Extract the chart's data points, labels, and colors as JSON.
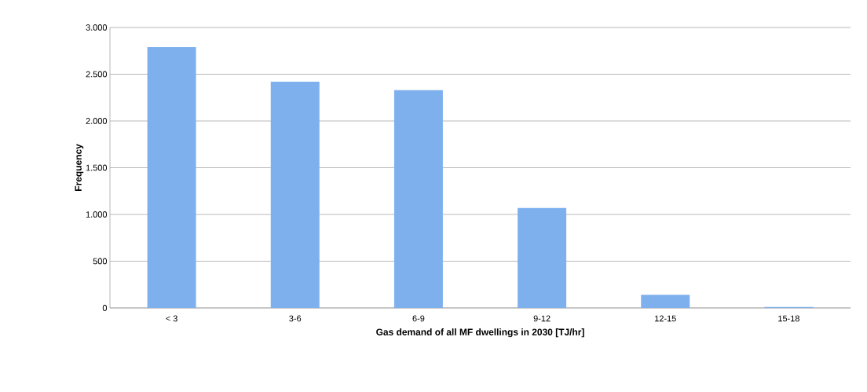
{
  "chart_data": {
    "type": "bar",
    "xlabel": "Gas demand of all MF dwellings in 2030 [TJ/hr]",
    "ylabel": "Frequency",
    "categories": [
      "< 3",
      "3-6",
      "6-9",
      "9-12",
      "12-15",
      "15-18"
    ],
    "values": [
      2790,
      2420,
      2330,
      1070,
      140,
      10
    ],
    "color": "#7fb0ee",
    "ylim": [
      0,
      3000
    ],
    "yticks": [
      {
        "value": 0,
        "label": "0"
      },
      {
        "value": 500,
        "label": "500"
      },
      {
        "value": 1000,
        "label": "1.000"
      },
      {
        "value": 1500,
        "label": "1.500"
      },
      {
        "value": 2000,
        "label": "2.000"
      },
      {
        "value": 2500,
        "label": "2.500"
      },
      {
        "value": 3000,
        "label": "3.000"
      }
    ],
    "grid": "y"
  }
}
